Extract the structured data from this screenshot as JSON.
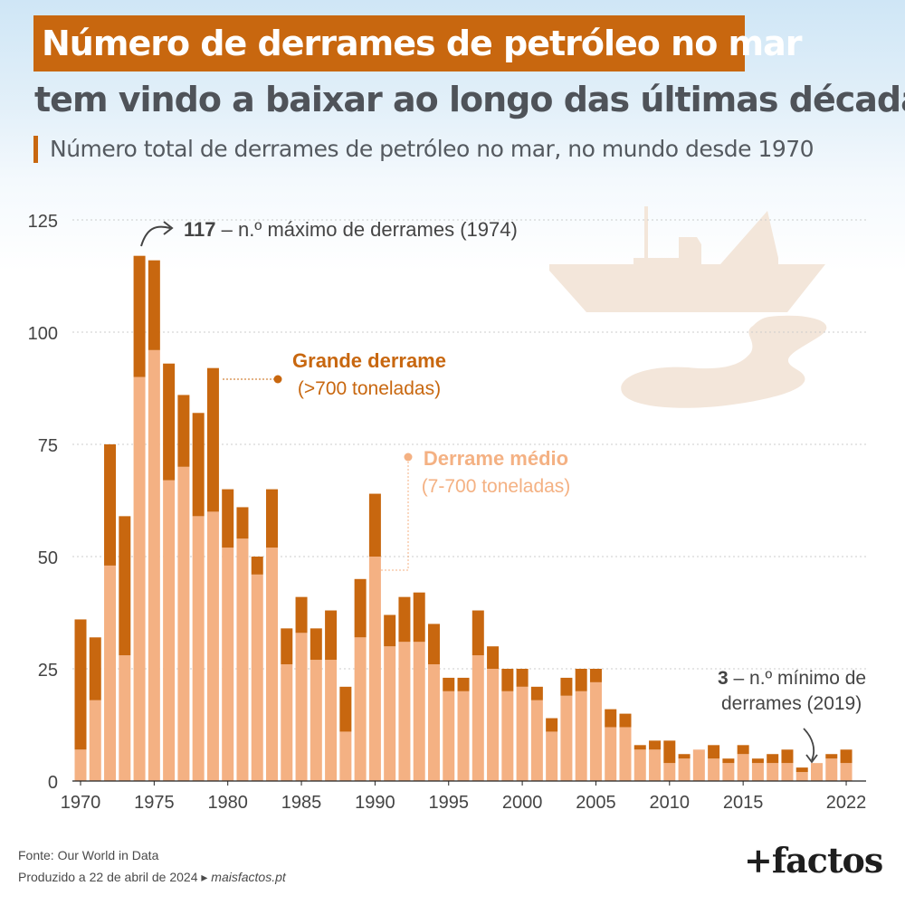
{
  "header": {
    "title_line1": "Número de derrames de petróleo no mar",
    "title_line2": "tem vindo a baixar ao longo das últimas décadas",
    "subtitle": "Número total de derrames de petróleo no mar, no mundo desde 1970"
  },
  "footer": {
    "source": "Fonte: Our World in Data",
    "produced_prefix": "Produzido a 22 de abril de 2024 ▸ ",
    "site": "maisfactos.pt",
    "logo": "+factos"
  },
  "colors": {
    "large": "#c8670f",
    "medium": "#f4b183",
    "title_bg": "#c8670f",
    "illustration": "#f3e6da"
  },
  "illustration": {
    "icon": "oil-tanker-spill-icon"
  },
  "chart_data": {
    "type": "bar",
    "stacked": true,
    "x": [
      1970,
      1971,
      1972,
      1973,
      1974,
      1975,
      1976,
      1977,
      1978,
      1979,
      1980,
      1981,
      1982,
      1983,
      1984,
      1985,
      1986,
      1987,
      1988,
      1989,
      1990,
      1991,
      1992,
      1993,
      1994,
      1995,
      1996,
      1997,
      1998,
      1999,
      2000,
      2001,
      2002,
      2003,
      2004,
      2005,
      2006,
      2007,
      2008,
      2009,
      2010,
      2011,
      2012,
      2013,
      2014,
      2015,
      2016,
      2017,
      2018,
      2019,
      2020,
      2021,
      2022
    ],
    "x_tick_labels": [
      "1970",
      "1975",
      "1980",
      "1985",
      "1990",
      "1995",
      "2000",
      "2005",
      "2010",
      "2015",
      "2022"
    ],
    "y_tick_labels": [
      "0",
      "25",
      "50",
      "75",
      "100",
      "125"
    ],
    "ylim": [
      0,
      125
    ],
    "grid": true,
    "series": [
      {
        "name": "Derrame médio",
        "range": "(7-700 toneladas)",
        "color": "#f4b183",
        "values": [
          7,
          18,
          48,
          28,
          90,
          96,
          67,
          70,
          59,
          60,
          52,
          54,
          46,
          52,
          26,
          33,
          27,
          27,
          11,
          32,
          50,
          30,
          31,
          31,
          26,
          20,
          20,
          28,
          25,
          20,
          21,
          18,
          11,
          19,
          20,
          22,
          12,
          12,
          7,
          7,
          4,
          5,
          7,
          5,
          4,
          6,
          4,
          4,
          4,
          2,
          4,
          5,
          4
        ]
      },
      {
        "name": "Grande derrame",
        "range": "(>700 toneladas)",
        "color": "#c8670f",
        "values": [
          29,
          14,
          27,
          31,
          27,
          20,
          26,
          16,
          23,
          32,
          13,
          7,
          4,
          13,
          8,
          8,
          7,
          11,
          10,
          13,
          14,
          7,
          10,
          11,
          9,
          3,
          3,
          10,
          5,
          5,
          4,
          3,
          3,
          4,
          5,
          3,
          4,
          3,
          1,
          2,
          5,
          1,
          0,
          3,
          1,
          2,
          1,
          2,
          3,
          1,
          0,
          1,
          3
        ]
      }
    ],
    "annotations": {
      "max": {
        "value": "117",
        "text": " – n.º máximo de derrames (1974)"
      },
      "min": {
        "value": "3",
        "text_line1": " – n.º mínimo de",
        "text_line2": "derrames (2019)"
      }
    }
  }
}
